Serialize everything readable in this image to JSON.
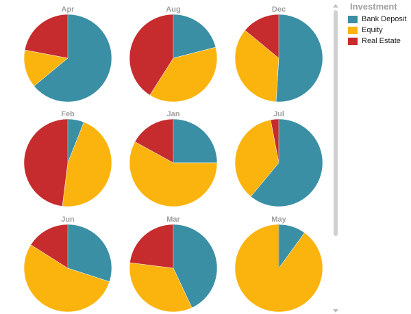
{
  "colors": {
    "Bank Deposit": "#3a8fa5",
    "Equity": "#fbb40e",
    "Real Estate": "#c62b2e"
  },
  "legend": {
    "title": "Investment",
    "items": [
      {
        "label": "Bank Deposit",
        "color": "#3a8fa5"
      },
      {
        "label": "Equity",
        "color": "#fbb40e"
      },
      {
        "label": "Real Estate",
        "color": "#c62b2e"
      }
    ]
  },
  "chart_data": {
    "type": "pie",
    "series_names": [
      "Bank Deposit",
      "Equity",
      "Real Estate"
    ],
    "pies": [
      {
        "title": "Apr",
        "values": [
          64,
          14,
          22
        ]
      },
      {
        "title": "Aug",
        "values": [
          21,
          38,
          41
        ]
      },
      {
        "title": "Dec",
        "values": [
          51,
          35,
          14
        ]
      },
      {
        "title": "Feb",
        "values": [
          6,
          46,
          48
        ]
      },
      {
        "title": "Jan",
        "values": [
          25,
          58,
          17
        ]
      },
      {
        "title": "Jul",
        "values": [
          61,
          36,
          3
        ]
      },
      {
        "title": "Jun",
        "values": [
          30,
          54,
          16
        ]
      },
      {
        "title": "Mar",
        "values": [
          43,
          34,
          23
        ]
      },
      {
        "title": "May",
        "values": [
          10,
          90,
          0
        ]
      }
    ]
  }
}
